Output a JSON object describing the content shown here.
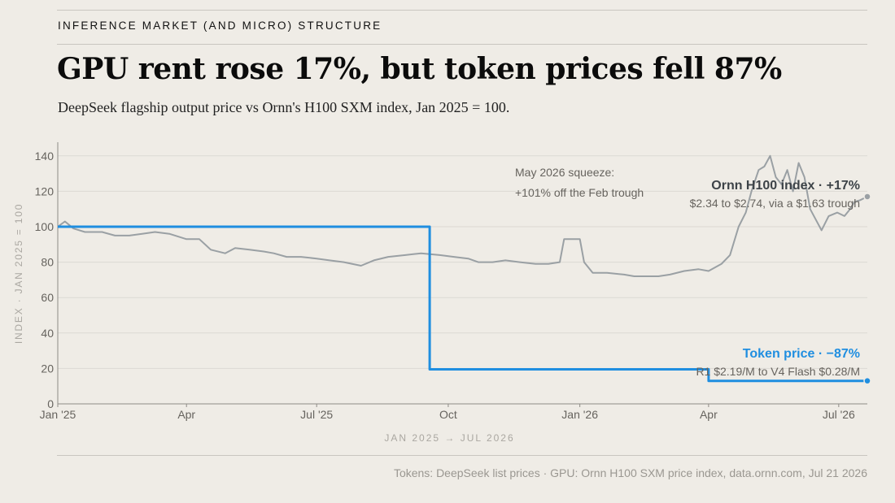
{
  "kicker": "INFERENCE MARKET (AND MICRO) STRUCTURE",
  "title": "GPU rent rose 17%, but token prices fell 87%",
  "subtitle": "DeepSeek flagship output price vs Ornn's H100 SXM index, Jan 2025 = 100.",
  "source": "Tokens: DeepSeek list prices · GPU: Ornn H100 SXM price index, data.ornn.com, Jul 21 2026",
  "colors": {
    "token": "#1f8ee0",
    "gpu": "#9aa0a4",
    "background": "#efece6"
  },
  "chart_data": {
    "type": "line",
    "title": "GPU rent rose 17%, but token prices fell 87%",
    "subtitle": "DeepSeek flagship output price vs Ornn's H100 SXM index, Jan 2025 = 100.",
    "xlabel": "JAN 2025 → JUL 2026",
    "ylabel": "INDEX · JAN 2025 = 100",
    "xlim": [
      "2025-01-01",
      "2026-07-21"
    ],
    "ylim": [
      0,
      150
    ],
    "yticks": [
      0,
      20,
      40,
      60,
      80,
      100,
      120,
      140
    ],
    "xticks": [
      {
        "date": "2025-01-01",
        "label": "Jan '25"
      },
      {
        "date": "2025-04-01",
        "label": "Apr"
      },
      {
        "date": "2025-07-01",
        "label": "Jul '25"
      },
      {
        "date": "2025-10-01",
        "label": "Oct"
      },
      {
        "date": "2026-01-01",
        "label": "Jan '26"
      },
      {
        "date": "2026-04-01",
        "label": "Apr"
      },
      {
        "date": "2026-07-01",
        "label": "Jul '26"
      }
    ],
    "grid": "horizontal",
    "series": [
      {
        "name": "Ornn H100 index",
        "step": false,
        "points": [
          [
            "2025-01-01",
            100
          ],
          [
            "2025-01-06",
            103
          ],
          [
            "2025-01-12",
            99
          ],
          [
            "2025-01-20",
            97
          ],
          [
            "2025-02-01",
            97
          ],
          [
            "2025-02-10",
            95
          ],
          [
            "2025-02-20",
            95
          ],
          [
            "2025-03-01",
            96
          ],
          [
            "2025-03-10",
            97
          ],
          [
            "2025-03-20",
            96
          ],
          [
            "2025-04-01",
            93
          ],
          [
            "2025-04-10",
            93
          ],
          [
            "2025-04-18",
            87
          ],
          [
            "2025-04-28",
            85
          ],
          [
            "2025-05-05",
            88
          ],
          [
            "2025-05-15",
            87
          ],
          [
            "2025-05-25",
            86
          ],
          [
            "2025-06-01",
            85
          ],
          [
            "2025-06-10",
            83
          ],
          [
            "2025-06-20",
            83
          ],
          [
            "2025-07-01",
            82
          ],
          [
            "2025-07-10",
            81
          ],
          [
            "2025-07-20",
            80
          ],
          [
            "2025-08-01",
            78
          ],
          [
            "2025-08-10",
            81
          ],
          [
            "2025-08-20",
            83
          ],
          [
            "2025-09-01",
            84
          ],
          [
            "2025-09-12",
            85
          ],
          [
            "2025-09-25",
            84
          ],
          [
            "2025-10-05",
            83
          ],
          [
            "2025-10-15",
            82
          ],
          [
            "2025-10-22",
            80
          ],
          [
            "2025-11-01",
            80
          ],
          [
            "2025-11-10",
            81
          ],
          [
            "2025-11-20",
            80
          ],
          [
            "2025-12-01",
            79
          ],
          [
            "2025-12-10",
            79
          ],
          [
            "2025-12-18",
            80
          ],
          [
            "2025-12-21",
            93
          ],
          [
            "2026-01-01",
            93
          ],
          [
            "2026-01-04",
            80
          ],
          [
            "2026-01-10",
            74
          ],
          [
            "2026-01-20",
            74
          ],
          [
            "2026-02-01",
            73
          ],
          [
            "2026-02-08",
            72
          ],
          [
            "2026-02-15",
            72
          ],
          [
            "2026-02-25",
            72
          ],
          [
            "2026-03-05",
            73
          ],
          [
            "2026-03-15",
            75
          ],
          [
            "2026-03-25",
            76
          ],
          [
            "2026-04-01",
            75
          ],
          [
            "2026-04-10",
            79
          ],
          [
            "2026-04-16",
            84
          ],
          [
            "2026-04-22",
            100
          ],
          [
            "2026-04-27",
            108
          ],
          [
            "2026-05-01",
            120
          ],
          [
            "2026-05-06",
            132
          ],
          [
            "2026-05-10",
            134
          ],
          [
            "2026-05-14",
            140
          ],
          [
            "2026-05-18",
            128
          ],
          [
            "2026-05-22",
            124
          ],
          [
            "2026-05-26",
            132
          ],
          [
            "2026-05-30",
            120
          ],
          [
            "2026-06-03",
            136
          ],
          [
            "2026-06-07",
            128
          ],
          [
            "2026-06-11",
            110
          ],
          [
            "2026-06-15",
            104
          ],
          [
            "2026-06-19",
            98
          ],
          [
            "2026-06-24",
            106
          ],
          [
            "2026-06-30",
            108
          ],
          [
            "2026-07-05",
            106
          ],
          [
            "2026-07-09",
            110
          ],
          [
            "2026-07-12",
            114
          ],
          [
            "2026-07-16",
            115
          ],
          [
            "2026-07-21",
            117
          ]
        ]
      },
      {
        "name": "Token price",
        "step": true,
        "points": [
          [
            "2025-01-01",
            100
          ],
          [
            "2025-09-18",
            100
          ],
          [
            "2025-09-18",
            19.5
          ],
          [
            "2026-04-01",
            19.5
          ],
          [
            "2026-04-01",
            13
          ],
          [
            "2026-07-21",
            13
          ]
        ]
      }
    ],
    "annotations": [
      {
        "key": "gpu_head",
        "text": "Ornn H100 index · +17%"
      },
      {
        "key": "gpu_sub",
        "text": "$2.34 to $2.74, via a $1.63 trough"
      },
      {
        "key": "token_head",
        "text": "Token price · −87%"
      },
      {
        "key": "token_sub",
        "text": "R1 $2.19/M to V4 Flash $0.28/M"
      },
      {
        "key": "squeeze_1",
        "text": "May 2026 squeeze:"
      },
      {
        "key": "squeeze_2",
        "text": "+101% off the Feb trough"
      }
    ]
  }
}
